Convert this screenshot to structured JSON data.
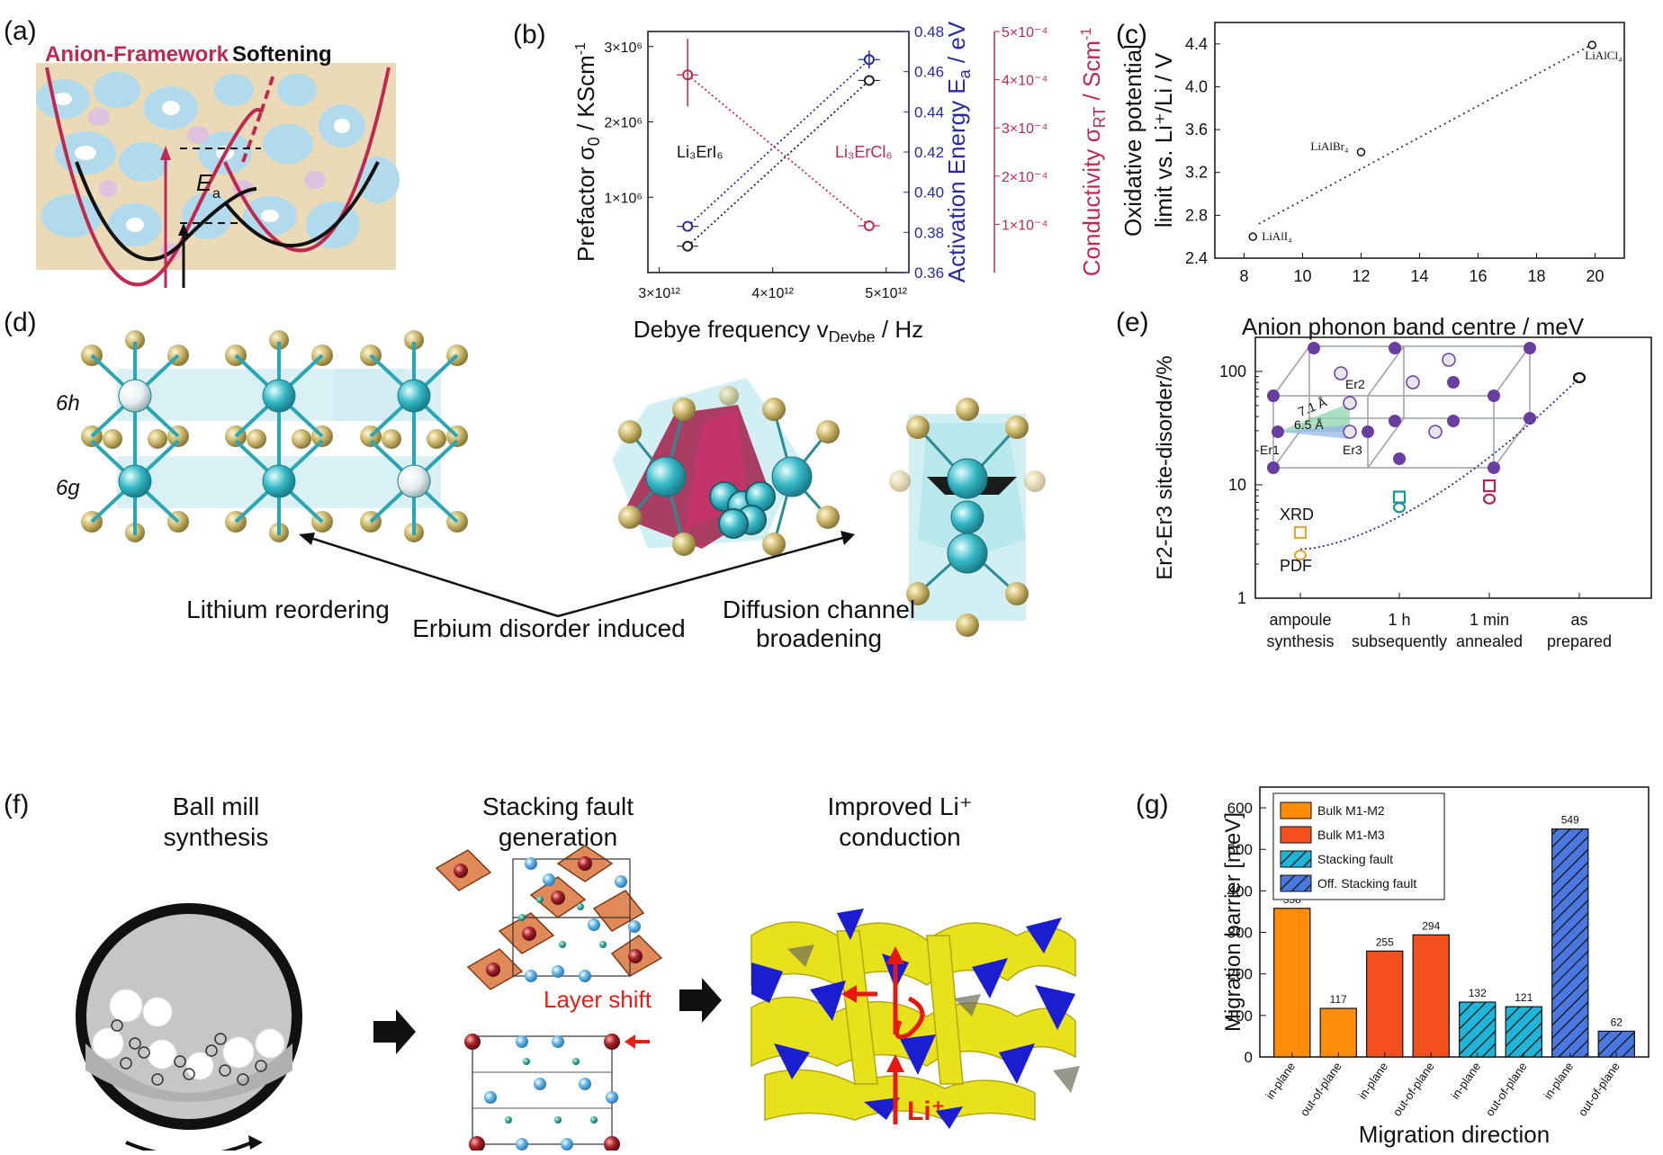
{
  "panel_labels": {
    "a": "(a)",
    "b": "(b)",
    "c": "(c)",
    "d": "(d)",
    "e": "(e)",
    "f": "(f)",
    "g": "(g)"
  },
  "panel_a": {
    "title_part1": "Anion-Framework",
    "title_part2": "Softening",
    "ea_label": "E",
    "ea_sub": "a",
    "colors": {
      "red": "#c0294f",
      "black": "#111111",
      "bg_blue": "#9fd3e8",
      "bg_tan": "#e6cfa3"
    }
  },
  "panel_b": {
    "xlabel_main": "Debye frequency v",
    "xlabel_sub": "Deybe",
    "xlabel_unit": " / Hz",
    "ylabel_left": "Prefactor σ",
    "ylabel_left_sub": "0",
    "ylabel_left_unit": " / KScm",
    "ylabel_left_sup": "-1",
    "ylabel_mid": "Activation Energy E",
    "ylabel_mid_sub": "a",
    "ylabel_mid_unit": " / eV",
    "ylabel_right": "Conductivity σ",
    "ylabel_right_sub": "RT",
    "ylabel_right_unit": " / Scm",
    "ylabel_right_sup": "-1",
    "x_ticks": [
      "3×10¹²",
      "4×10¹²",
      "5×10¹²"
    ],
    "left_ticks": [
      "1×10⁶",
      "2×10⁶",
      "3×10⁶"
    ],
    "mid_ticks": [
      "0.36",
      "0.38",
      "0.40",
      "0.42",
      "0.44",
      "0.46",
      "0.48"
    ],
    "right_ticks": [
      "1×10⁻⁴",
      "2×10⁻⁴",
      "3×10⁻⁴",
      "4×10⁻⁴",
      "5×10⁻⁴"
    ],
    "label_iodide": "Li₃ErI₆",
    "label_chloride": "Li₃ErCl₆",
    "colors": {
      "prefactor": "#222222",
      "activation": "#2a2a9e",
      "conductivity": "#c0294f"
    }
  },
  "panel_c": {
    "ylabel_line1": "Oxidative potential",
    "ylabel_line2": "limit vs. Li⁺/Li / V",
    "xlabel": "Anion phonon band centre / meV",
    "x_ticks": [
      "8",
      "10",
      "12",
      "14",
      "16",
      "18",
      "20"
    ],
    "y_ticks": [
      "2.4",
      "2.8",
      "3.2",
      "3.6",
      "4.0",
      "4.4"
    ],
    "point_labels": [
      "LiAlI₄",
      "LiAlBr₄",
      "LiAlCl₄"
    ]
  },
  "panel_d": {
    "label_6h": "6h",
    "label_6g": "6g",
    "caption_left": "Lithium reordering",
    "caption_right": "Diffusion channel broadening",
    "caption_bottom": "Erbium disorder induced"
  },
  "panel_e": {
    "ylabel": "Er2-Er3 site-disorder/%",
    "y_ticks": [
      "1",
      "10",
      "100"
    ],
    "x_ticks": [
      [
        "ampoule",
        "synthesis"
      ],
      [
        "1 h",
        "subsequently"
      ],
      [
        "1 min",
        "annealed"
      ],
      [
        "as",
        "prepared"
      ]
    ],
    "legend_xrd": "XRD",
    "legend_pdf": "PDF",
    "inset_labels": [
      "Er2",
      "7.1 Å",
      "6.5 Å",
      "Er1",
      "Er3"
    ]
  },
  "panel_f": {
    "title1_line1": "Ball mill",
    "title1_line2": "synthesis",
    "title2_line1": "Stacking fault",
    "title2_line2": "generation",
    "title3_line1": "Improved Li⁺",
    "title3_line2": "conduction",
    "layer_shift": "Layer shift",
    "li_label": "Li⁺"
  },
  "chart_data": [
    {
      "id": "panel_b",
      "type": "scatter",
      "x": [
        3250000000000.0,
        4850000000000.0
      ],
      "series": [
        {
          "name": "Prefactor",
          "axis": "left",
          "values": [
            350000.0,
            2550000.0
          ]
        },
        {
          "name": "Activation Energy",
          "axis": "mid",
          "values": [
            0.383,
            0.466
          ]
        },
        {
          "name": "Conductivity",
          "axis": "right",
          "values": [
            0.00041,
            9.7e-05
          ]
        }
      ],
      "xlim": [
        2900000000000.0,
        5200000000000.0
      ],
      "ylim_left": [
        0,
        3200000.0
      ],
      "ylim_mid": [
        0.36,
        0.48
      ],
      "ylim_right": [
        0,
        0.0005
      ]
    },
    {
      "id": "panel_c",
      "type": "scatter",
      "x": [
        8.3,
        12.0,
        19.9
      ],
      "y": [
        2.6,
        3.39,
        4.39
      ],
      "labels": [
        "LiAlI₄",
        "LiAlBr₄",
        "LiAlCl₄"
      ],
      "xlim": [
        7,
        21
      ],
      "ylim": [
        2.4,
        4.6
      ]
    },
    {
      "id": "panel_e",
      "type": "scatter",
      "categories": [
        "ampoule synthesis",
        "1 h subsequently",
        "1 min annealed",
        "as prepared"
      ],
      "series": [
        {
          "name": "XRD",
          "values": [
            3.8,
            7.8,
            9.8,
            null
          ]
        },
        {
          "name": "PDF",
          "values": [
            2.4,
            6.3,
            7.5,
            88
          ]
        }
      ],
      "yscale": "log",
      "ylim": [
        1,
        200
      ]
    },
    {
      "id": "panel_g",
      "type": "bar",
      "title": "",
      "xlabel": "Migration direction",
      "ylabel": "Migration barrier [meV]",
      "categories": [
        "in-plane",
        "out-of-plane",
        "in-plane",
        "out-of-plane",
        "in-plane",
        "out-of-plane",
        "in-plane",
        "out-of-plane"
      ],
      "values": [
        358,
        117,
        255,
        294,
        132,
        121,
        549,
        62
      ],
      "groups": [
        "Bulk M1-M2",
        "Bulk M1-M2",
        "Bulk M1-M3",
        "Bulk M1-M3",
        "Stacking fault",
        "Stacking fault",
        "Off. Stacking fault",
        "Off. Stacking fault"
      ],
      "legend": [
        "Bulk M1-M2",
        "Bulk M1-M3",
        "Stacking fault",
        "Off. Stacking fault"
      ],
      "legend_colors": [
        "#ff8c0a",
        "#f2501c",
        "#1fb5d8",
        "#4a78e0"
      ],
      "ylim": [
        0,
        650
      ],
      "y_ticks": [
        "0",
        "100",
        "200",
        "300",
        "400",
        "500",
        "600"
      ]
    }
  ]
}
